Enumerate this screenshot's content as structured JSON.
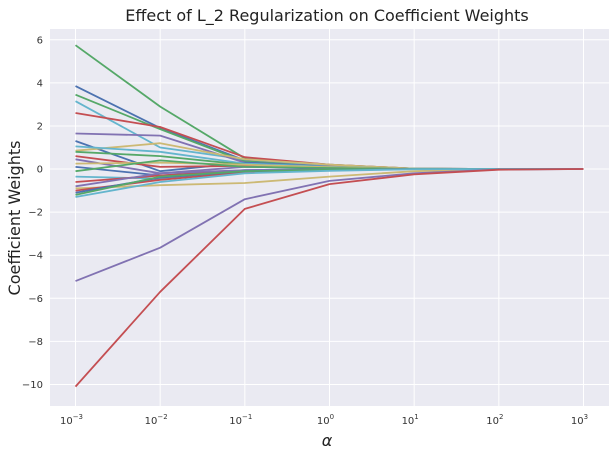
{
  "chart_data": {
    "type": "line",
    "title": "Effect of L_2 Regularization on Coefficient Weights",
    "xlabel": "α",
    "ylabel": "Coefficient Weights",
    "xscale": "log",
    "x": [
      0.001,
      0.01,
      0.1,
      1,
      10,
      100,
      1000
    ],
    "xlim": [
      0.0005,
      2000
    ],
    "ylim": [
      -11,
      6.5
    ],
    "x_ticks": [
      {
        "value": 0.001,
        "base": "10",
        "exp": "−3"
      },
      {
        "value": 0.01,
        "base": "10",
        "exp": "−2"
      },
      {
        "value": 0.1,
        "base": "10",
        "exp": "−1"
      },
      {
        "value": 1,
        "base": "10",
        "exp": "0"
      },
      {
        "value": 10,
        "base": "10",
        "exp": "1"
      },
      {
        "value": 100,
        "base": "10",
        "exp": "2"
      },
      {
        "value": 1000,
        "base": "10",
        "exp": "3"
      }
    ],
    "y_ticks": [
      {
        "value": 6,
        "label": "6"
      },
      {
        "value": 4,
        "label": "4"
      },
      {
        "value": 2,
        "label": "2"
      },
      {
        "value": 0,
        "label": "0"
      },
      {
        "value": -2,
        "label": "−2"
      },
      {
        "value": -4,
        "label": "−4"
      },
      {
        "value": -6,
        "label": "−6"
      },
      {
        "value": -8,
        "label": "−8"
      },
      {
        "value": -10,
        "label": "−10"
      }
    ],
    "grid": true,
    "legend": "none",
    "background": "#eaeaf2",
    "series": [
      {
        "color": "#55a868",
        "values": [
          5.75,
          2.9,
          0.5,
          0.2,
          0.02,
          0.0,
          0.0
        ]
      },
      {
        "color": "#4c72b0",
        "values": [
          3.85,
          1.9,
          0.4,
          0.15,
          0.02,
          0.0,
          0.0
        ]
      },
      {
        "color": "#55a868",
        "values": [
          3.45,
          1.85,
          0.35,
          0.12,
          0.01,
          0.0,
          0.0
        ]
      },
      {
        "color": "#64b5cd",
        "values": [
          3.15,
          1.0,
          0.45,
          0.18,
          0.02,
          0.0,
          0.0
        ]
      },
      {
        "color": "#c44e52",
        "values": [
          2.6,
          1.95,
          0.55,
          0.2,
          0.02,
          0.0,
          0.0
        ]
      },
      {
        "color": "#8172b2",
        "values": [
          1.65,
          1.55,
          0.3,
          0.12,
          0.01,
          0.0,
          0.0
        ]
      },
      {
        "color": "#4c72b0",
        "values": [
          1.3,
          -0.1,
          0.3,
          0.1,
          0.01,
          0.0,
          0.0
        ]
      },
      {
        "color": "#ccb974",
        "values": [
          0.85,
          1.2,
          0.45,
          0.2,
          0.02,
          0.0,
          0.0
        ]
      },
      {
        "color": "#64b5cd",
        "values": [
          1.05,
          0.8,
          0.25,
          0.1,
          0.01,
          0.0,
          0.0
        ]
      },
      {
        "color": "#55a868",
        "values": [
          0.8,
          0.6,
          0.2,
          0.08,
          0.01,
          0.0,
          0.0
        ]
      },
      {
        "color": "#c44e52",
        "values": [
          0.6,
          0.1,
          0.15,
          0.05,
          0.0,
          0.0,
          0.0
        ]
      },
      {
        "color": "#8172b2",
        "values": [
          0.45,
          -0.2,
          0.1,
          0.05,
          0.0,
          0.0,
          0.0
        ]
      },
      {
        "color": "#ccb974",
        "values": [
          0.25,
          0.3,
          0.2,
          0.08,
          0.01,
          0.0,
          0.0
        ]
      },
      {
        "color": "#4c72b0",
        "values": [
          0.1,
          -0.3,
          -0.05,
          0.0,
          0.0,
          0.0,
          0.0
        ]
      },
      {
        "color": "#55a868",
        "values": [
          -0.1,
          0.4,
          0.1,
          0.05,
          0.0,
          0.0,
          0.0
        ]
      },
      {
        "color": "#64b5cd",
        "values": [
          -0.35,
          -0.45,
          -0.1,
          -0.03,
          0.0,
          0.0,
          0.0
        ]
      },
      {
        "color": "#c44e52",
        "values": [
          -0.6,
          -0.3,
          -0.1,
          -0.05,
          0.0,
          0.0,
          0.0
        ]
      },
      {
        "color": "#8172b2",
        "values": [
          -0.8,
          -0.2,
          -0.05,
          -0.02,
          0.0,
          0.0,
          0.0
        ]
      },
      {
        "color": "#ccb974",
        "values": [
          -0.9,
          -0.75,
          -0.65,
          -0.35,
          -0.1,
          -0.01,
          0.0
        ]
      },
      {
        "color": "#c44e52",
        "values": [
          -1.0,
          -0.5,
          -0.15,
          -0.05,
          0.0,
          0.0,
          0.0
        ]
      },
      {
        "color": "#4c72b0",
        "values": [
          -1.1,
          -0.4,
          -0.1,
          -0.05,
          0.0,
          0.0,
          0.0
        ]
      },
      {
        "color": "#55a868",
        "values": [
          -1.2,
          -0.35,
          -0.1,
          -0.03,
          0.0,
          0.0,
          0.0
        ]
      },
      {
        "color": "#64b5cd",
        "values": [
          -1.3,
          -0.6,
          -0.2,
          -0.08,
          -0.01,
          0.0,
          0.0
        ]
      },
      {
        "color": "#8172b2",
        "values": [
          -5.2,
          -3.65,
          -1.4,
          -0.55,
          -0.2,
          -0.02,
          0.0
        ]
      },
      {
        "color": "#c44e52",
        "values": [
          -10.1,
          -5.7,
          -1.85,
          -0.7,
          -0.25,
          -0.03,
          0.0
        ]
      }
    ]
  }
}
